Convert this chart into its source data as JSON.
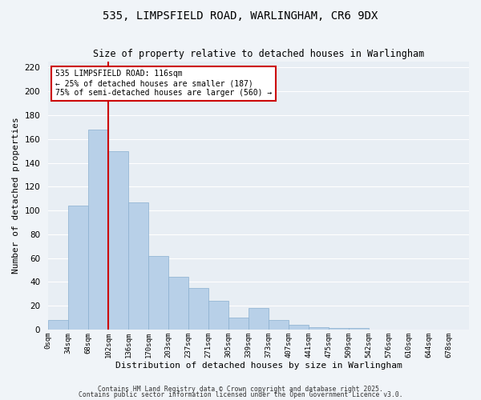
{
  "title": "535, LIMPSFIELD ROAD, WARLINGHAM, CR6 9DX",
  "subtitle": "Size of property relative to detached houses in Warlingham",
  "xlabel": "Distribution of detached houses by size in Warlingham",
  "ylabel": "Number of detached properties",
  "bar_values": [
    8,
    104,
    168,
    150,
    107,
    62,
    44,
    35,
    24,
    10,
    18,
    8,
    4,
    2,
    1,
    1,
    0,
    0,
    0,
    0,
    0
  ],
  "bin_labels": [
    "0sqm",
    "34sqm",
    "68sqm",
    "102sqm",
    "136sqm",
    "170sqm",
    "203sqm",
    "237sqm",
    "271sqm",
    "305sqm",
    "339sqm",
    "373sqm",
    "407sqm",
    "441sqm",
    "475sqm",
    "509sqm",
    "542sqm",
    "576sqm",
    "610sqm",
    "644sqm",
    "678sqm"
  ],
  "bar_color": "#b8d0e8",
  "bar_edge_color": "#8ab0d0",
  "vline_color": "#cc0000",
  "annotation_line1": "535 LIMPSFIELD ROAD: 116sqm",
  "annotation_line2": "← 25% of detached houses are smaller (187)",
  "annotation_line3": "75% of semi-detached houses are larger (560) →",
  "annotation_box_color": "#ffffff",
  "annotation_box_edge": "#cc0000",
  "ylim": [
    0,
    225
  ],
  "yticks": [
    0,
    20,
    40,
    60,
    80,
    100,
    120,
    140,
    160,
    180,
    200,
    220
  ],
  "footer1": "Contains HM Land Registry data © Crown copyright and database right 2025.",
  "footer2": "Contains public sector information licensed under the Open Government Licence v3.0.",
  "bg_color": "#f0f4f8",
  "plot_bg_color": "#e8eef4",
  "grid_color": "#ffffff",
  "figsize": [
    6.0,
    5.0
  ],
  "dpi": 100
}
